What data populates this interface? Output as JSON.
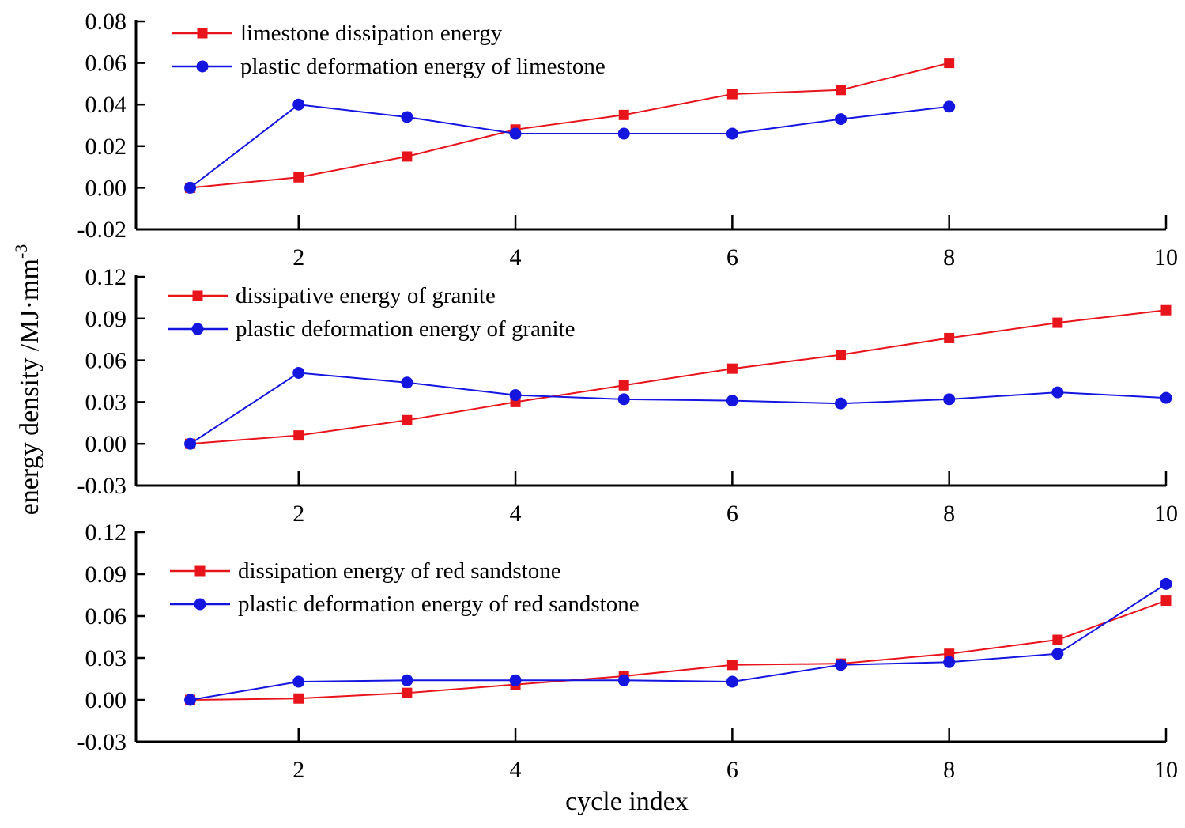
{
  "figure": {
    "ylabel": "energy density /MJ·mm",
    "ylabel_sup": "-3",
    "xlabel": "cycle index"
  },
  "colors": {
    "red": "#e8141c",
    "blue": "#1515e0",
    "axis": "#000000"
  },
  "chart_data": [
    {
      "type": "line",
      "title": "",
      "xlim": [
        0.5,
        10
      ],
      "xticks": [
        2,
        4,
        6,
        8,
        10
      ],
      "ylim": [
        -0.02,
        0.08
      ],
      "yticks": [
        -0.02,
        0.0,
        0.02,
        0.04,
        0.06,
        0.08
      ],
      "ytick_labels": [
        "-0.02",
        "0.00",
        "0.02",
        "0.04",
        "0.06",
        "0.08"
      ],
      "series": [
        {
          "name": "limestone dissipation energy",
          "color": "red",
          "marker": "square",
          "x": [
            1,
            2,
            3,
            4,
            5,
            6,
            7,
            8
          ],
          "values": [
            0.0,
            0.005,
            0.015,
            0.028,
            0.035,
            0.045,
            0.047,
            0.06
          ]
        },
        {
          "name": "plastic deformation energy of limestone",
          "color": "blue",
          "marker": "circle",
          "x": [
            1,
            2,
            3,
            4,
            5,
            6,
            7,
            8
          ],
          "values": [
            0.0,
            0.04,
            0.034,
            0.026,
            0.026,
            0.026,
            0.033,
            0.039
          ]
        }
      ]
    },
    {
      "type": "line",
      "title": "",
      "xlim": [
        0.5,
        10
      ],
      "xticks": [
        2,
        4,
        6,
        8,
        10
      ],
      "ylim": [
        -0.03,
        0.12
      ],
      "yticks": [
        -0.03,
        0.0,
        0.03,
        0.06,
        0.09,
        0.12
      ],
      "ytick_labels": [
        "-0.03",
        "0.00",
        "0.03",
        "0.06",
        "0.09",
        "0.12"
      ],
      "series": [
        {
          "name": "dissipative energy of granite",
          "color": "red",
          "marker": "square",
          "x": [
            1,
            2,
            3,
            4,
            5,
            6,
            7,
            8,
            9,
            10
          ],
          "values": [
            0.0,
            0.006,
            0.017,
            0.03,
            0.042,
            0.054,
            0.064,
            0.076,
            0.087,
            0.096
          ]
        },
        {
          "name": "plastic deformation energy of granite",
          "color": "blue",
          "marker": "circle",
          "x": [
            1,
            2,
            3,
            4,
            5,
            6,
            7,
            8,
            9,
            10
          ],
          "values": [
            0.0,
            0.051,
            0.044,
            0.035,
            0.032,
            0.031,
            0.029,
            0.032,
            0.037,
            0.033
          ]
        }
      ]
    },
    {
      "type": "line",
      "title": "",
      "xlim": [
        0.5,
        10
      ],
      "xticks": [
        2,
        4,
        6,
        8,
        10
      ],
      "ylim": [
        -0.03,
        0.12
      ],
      "yticks": [
        -0.03,
        0.0,
        0.03,
        0.06,
        0.09,
        0.12
      ],
      "ytick_labels": [
        "-0.03",
        "0.00",
        "0.03",
        "0.06",
        "0.09",
        "0.12"
      ],
      "series": [
        {
          "name": "dissipation energy of red sandstone",
          "color": "red",
          "marker": "square",
          "x": [
            1,
            2,
            3,
            4,
            5,
            6,
            7,
            8,
            9,
            10
          ],
          "values": [
            0.0,
            0.001,
            0.005,
            0.011,
            0.017,
            0.025,
            0.026,
            0.033,
            0.043,
            0.071
          ]
        },
        {
          "name": "plastic deformation energy of red sandstone",
          "color": "blue",
          "marker": "circle",
          "x": [
            1,
            2,
            3,
            4,
            5,
            6,
            7,
            8,
            9,
            10
          ],
          "values": [
            0.0,
            0.013,
            0.014,
            0.014,
            0.014,
            0.013,
            0.025,
            0.027,
            0.033,
            0.083
          ]
        }
      ]
    }
  ]
}
